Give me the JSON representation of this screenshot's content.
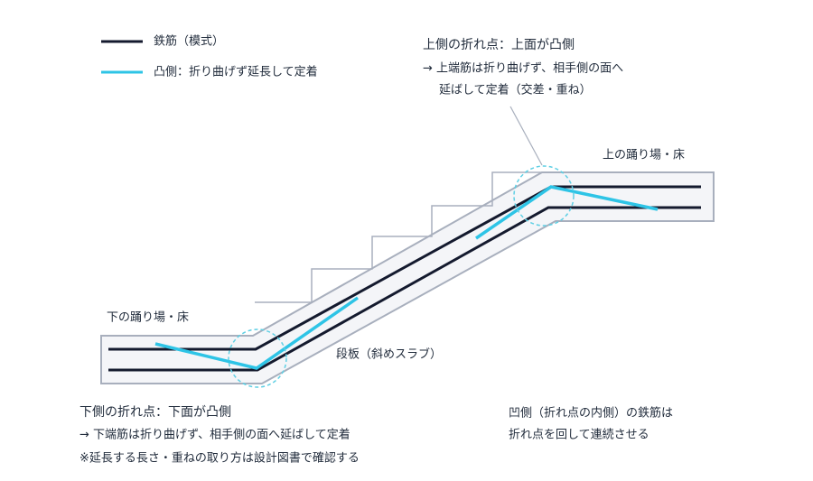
{
  "legend": [
    {
      "label": "鉄筋（模式）"
    },
    {
      "label": "凸側：折り曲げず延長して定着"
    }
  ],
  "labels": {
    "upper_landing": "上の踊り場・床",
    "lower_landing": "下の踊り場・床",
    "slab": "段板（斜めスラブ）"
  },
  "upper_note": {
    "title": "上側の折れ点：上面が凸側",
    "lines": [
      "→ 上端筋は折り曲げず、相手側の面へ",
      "延ばして定着（交差・重ね）"
    ]
  },
  "lower_note": {
    "title": "下側の折れ点：下面が凸側",
    "lines": [
      "→ 下端筋は折り曲げず、相手側の面へ延ばして定着"
    ],
    "remark": "※延長する長さ・重ねの取り方は設計図書で確認する"
  },
  "concave_note": {
    "lines": [
      "凹側（折れ点の内側）の鉄筋は",
      "折れ点を回して連続させる"
    ]
  }
}
